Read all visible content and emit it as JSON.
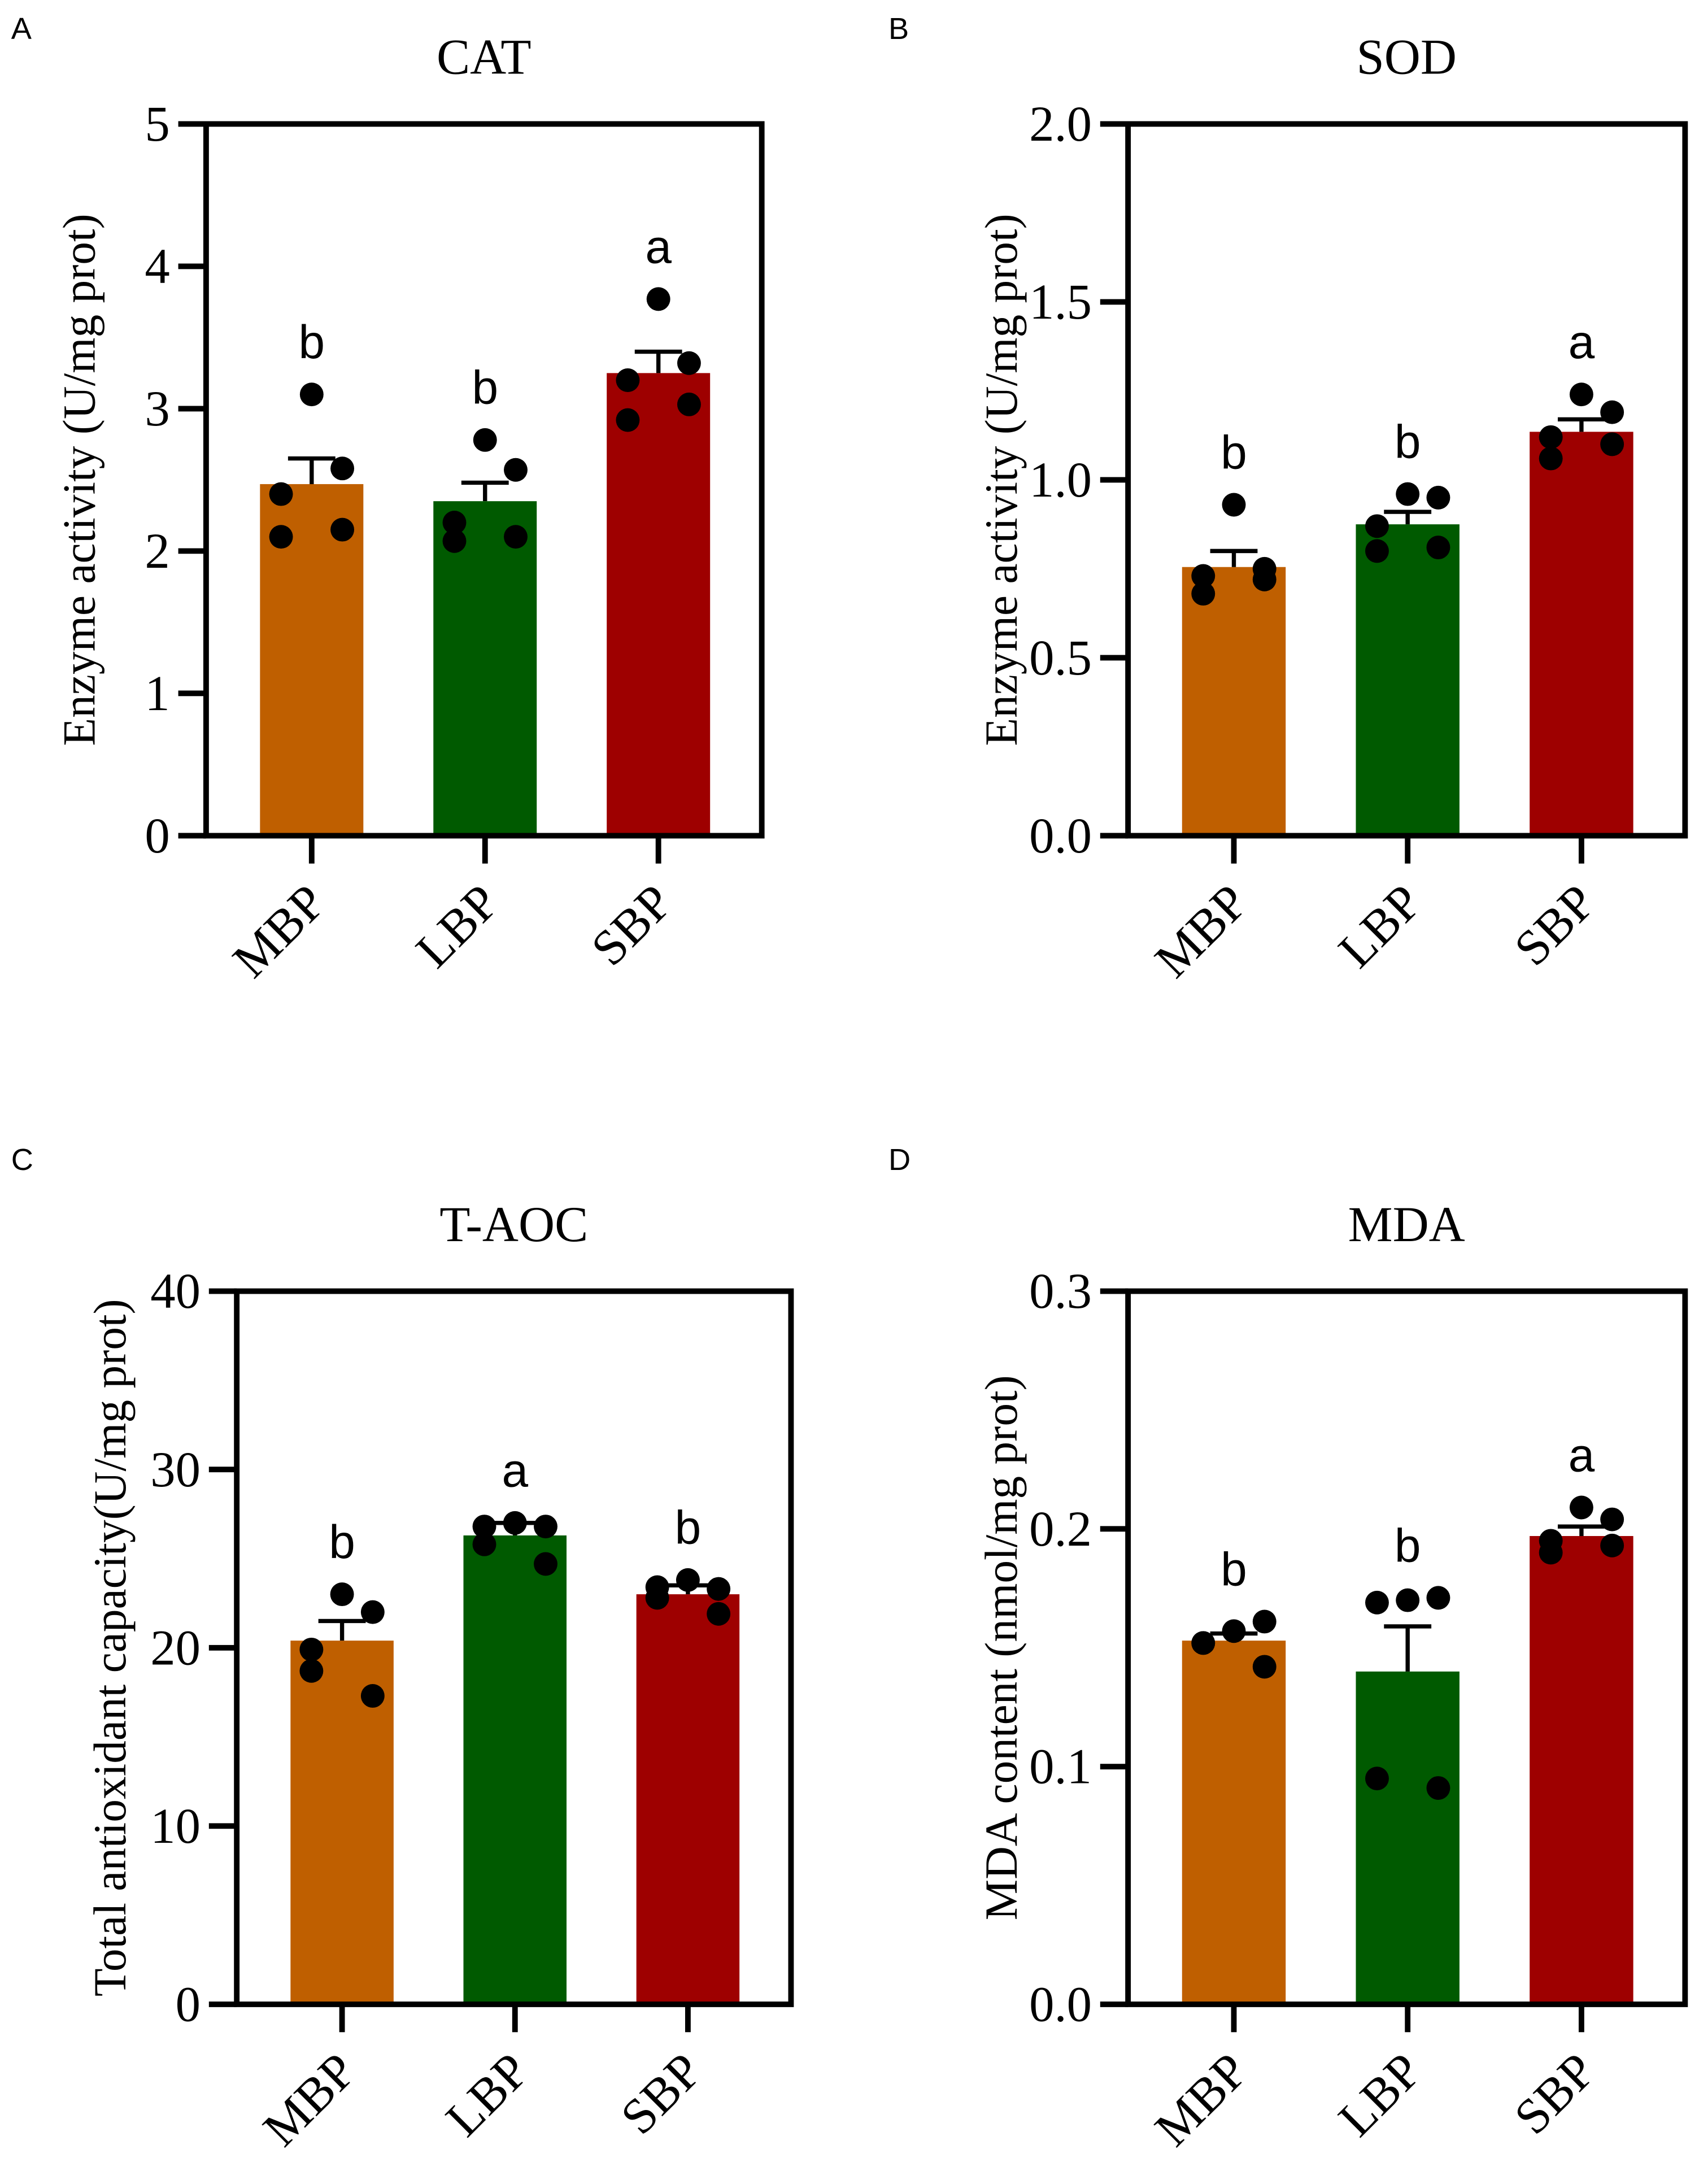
{
  "colors": {
    "MBP": "#bf5f00",
    "LBP": "#005a00",
    "SBP": "#9e0000",
    "axis": "#000000",
    "point": "#000000"
  },
  "chart_data": [
    {
      "panel": "A",
      "type": "bar",
      "title": "CAT",
      "ylabel": "Enzyme activity (U/mg prot)",
      "xlabel": "",
      "categories": [
        "MBP",
        "LBP",
        "SBP"
      ],
      "ylim": [
        0,
        5
      ],
      "yticks": [
        "0",
        "1",
        "2",
        "3",
        "4",
        "5"
      ],
      "ytick_values": [
        0,
        1,
        2,
        3,
        4,
        5
      ],
      "values": [
        2.47,
        2.35,
        3.25
      ],
      "sem_upper": [
        2.65,
        2.48,
        3.4
      ],
      "points": [
        [
          3.1,
          2.58,
          2.4,
          2.1,
          2.15
        ],
        [
          2.78,
          2.57,
          2.2,
          2.07,
          2.1
        ],
        [
          3.77,
          3.32,
          3.2,
          2.92,
          3.03
        ]
      ],
      "letters": [
        "b",
        "b",
        "a"
      ],
      "grid": false
    },
    {
      "panel": "B",
      "type": "bar",
      "title": "SOD",
      "ylabel": "Enzyme activity (U/mg prot)",
      "xlabel": "",
      "categories": [
        "MBP",
        "LBP",
        "SBP"
      ],
      "ylim": [
        0,
        2
      ],
      "yticks": [
        "0.0",
        "0.5",
        "1.0",
        "1.5",
        "2.0"
      ],
      "ytick_values": [
        0,
        0.5,
        1,
        1.5,
        2
      ],
      "values": [
        0.755,
        0.875,
        1.135
      ],
      "sem_upper": [
        0.8,
        0.91,
        1.17
      ],
      "points": [
        [
          0.93,
          0.75,
          0.73,
          0.68,
          0.72
        ],
        [
          0.96,
          0.95,
          0.87,
          0.8,
          0.81
        ],
        [
          1.24,
          1.19,
          1.12,
          1.06,
          1.1
        ]
      ],
      "letters": [
        "b",
        "b",
        "a"
      ],
      "grid": false
    },
    {
      "panel": "C",
      "type": "bar",
      "title": "T-AOC",
      "ylabel": "Total antioxidant capacity(U/mg prot)",
      "xlabel": "",
      "categories": [
        "MBP",
        "LBP",
        "SBP"
      ],
      "ylim": [
        0,
        40
      ],
      "yticks": [
        "0",
        "10",
        "20",
        "30",
        "40"
      ],
      "ytick_values": [
        0,
        10,
        20,
        30,
        40
      ],
      "values": [
        20.4,
        26.3,
        23.0
      ],
      "sem_upper": [
        21.5,
        27.0,
        23.5
      ],
      "points": [
        [
          23.0,
          22.0,
          19.9,
          18.7,
          17.3
        ],
        [
          27.0,
          26.8,
          26.8,
          25.8,
          24.7
        ],
        [
          23.8,
          23.3,
          23.4,
          22.8,
          21.9
        ]
      ],
      "letters": [
        "b",
        "a",
        "b"
      ],
      "grid": false
    },
    {
      "panel": "D",
      "type": "bar",
      "title": "MDA",
      "ylabel": "MDA content (nmol/mg prot)",
      "xlabel": "",
      "categories": [
        "MBP",
        "LBP",
        "SBP"
      ],
      "ylim": [
        0,
        0.3
      ],
      "yticks": [
        "0.0",
        "0.1",
        "0.2",
        "0.3"
      ],
      "ytick_values": [
        0,
        0.1,
        0.2,
        0.3
      ],
      "values": [
        0.153,
        0.14,
        0.197
      ],
      "sem_upper": [
        0.156,
        0.159,
        0.201
      ],
      "points": [
        [
          0.157,
          0.161,
          0.152,
          0.152,
          0.142
        ],
        [
          0.17,
          0.171,
          0.169,
          0.095,
          0.091
        ],
        [
          0.209,
          0.204,
          0.19,
          0.195,
          0.193
        ]
      ],
      "letters": [
        "b",
        "b",
        "a"
      ],
      "grid": false
    }
  ]
}
